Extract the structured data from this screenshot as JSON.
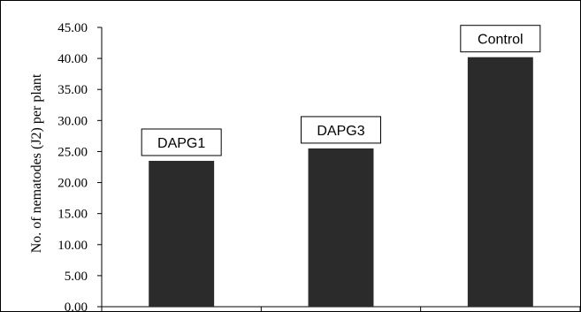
{
  "chart_data": {
    "type": "bar",
    "categories": [
      "DAPG1",
      "DAPG3",
      "Control"
    ],
    "values": [
      23.5,
      25.5,
      40.2
    ],
    "bar_labels": [
      "DAPG1",
      "DAPG3",
      "Control"
    ],
    "ylabel": "No. of nematodes  (J2) per plant",
    "ylim": [
      0,
      45
    ],
    "yticks": [
      "0.00",
      "5.00",
      "10.00",
      "15.00",
      "20.00",
      "25.00",
      "30.00",
      "35.00",
      "40.00",
      "45.00"
    ],
    "bar_color": "#2b2b2b",
    "grid": false,
    "legend": "none"
  }
}
